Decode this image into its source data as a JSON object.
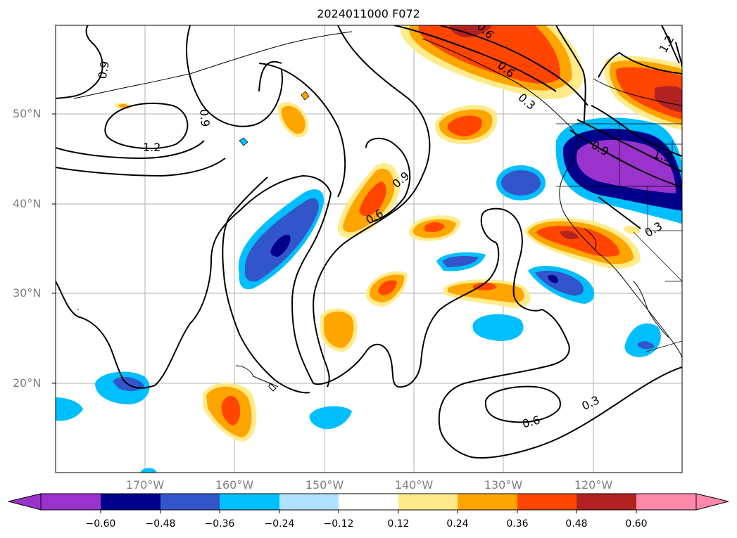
{
  "title": "2024011000 F072",
  "map": {
    "lat_labels": [
      "50°N",
      "40°N",
      "30°N",
      "20°N"
    ],
    "lon_labels": [
      "170°W",
      "160°W",
      "150°W",
      "140°W",
      "130°W",
      "120°W"
    ],
    "contour_labels": [
      "0.9",
      "0.9",
      "1.2",
      "0.6",
      "0.9",
      "0.6",
      "0.3",
      "0.6",
      "0.3",
      "1.2",
      "1.5",
      "0.9",
      "0.3",
      "0.6"
    ]
  },
  "colorbar": {
    "ticks": [
      "−0.60",
      "−0.48",
      "−0.36",
      "−0.24",
      "−0.12",
      "0.12",
      "0.24",
      "0.36",
      "0.48",
      "0.60"
    ],
    "colors": [
      "#9933cc",
      "#00008b",
      "#3355cc",
      "#00bfff",
      "#b0e2ff",
      "#ffffff",
      "#ffeb8a",
      "#ffa500",
      "#ff4500",
      "#b22222",
      "#ff88aa"
    ]
  },
  "colors": {
    "purple": "#9933cc",
    "navy": "#00008b",
    "blue": "#3355cc",
    "cyan": "#00bfff",
    "lightblue": "#b0e2ff",
    "yellow": "#ffeb8a",
    "orange": "#ffa500",
    "red": "#ff4500",
    "darkred": "#b22222",
    "pink": "#ff88aa"
  }
}
